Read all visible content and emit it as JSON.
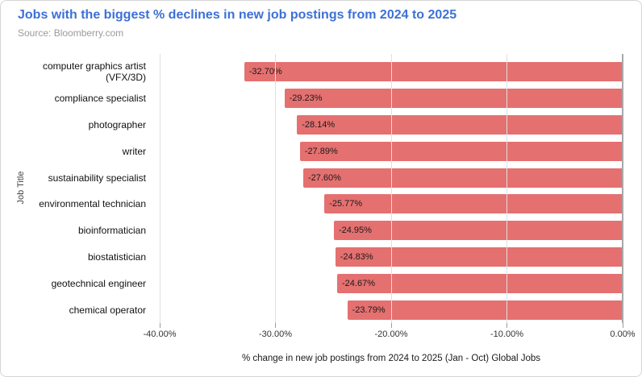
{
  "header": {
    "title": "Jobs with the biggest % declines in new job postings from 2024 to 2025",
    "source": "Source: Bloomberry.com"
  },
  "colors": {
    "title": "#3c70d6",
    "muted": "#9b9b9b",
    "bar": "#e57070",
    "grid": "#e0e0e0",
    "baseline": "#a8a8a8",
    "border": "#d6d6d6"
  },
  "chart_data": {
    "type": "bar",
    "orientation": "horizontal",
    "title": "Jobs with the biggest % declines in new job postings from 2024 to 2025",
    "subtitle": "Source: Bloomberry.com",
    "xlabel": "% change in new job postings from 2024 to 2025 (Jan - Oct) Global Jobs",
    "ylabel": "Job Title",
    "categories": [
      "computer graphics artist\n(VFX/3D)",
      "compliance specialist",
      "photographer",
      "writer",
      "sustainability specialist",
      "environmental technician",
      "bioinformatician",
      "biostatistician",
      "geotechnical engineer",
      "chemical operator"
    ],
    "values": [
      -32.7,
      -29.23,
      -28.14,
      -27.89,
      -27.6,
      -25.77,
      -24.95,
      -24.83,
      -24.67,
      -23.79
    ],
    "value_labels": [
      "-32.70%",
      "-29.23%",
      "-28.14%",
      "-27.89%",
      "-27.60%",
      "-25.77%",
      "-24.95%",
      "-24.83%",
      "-24.67%",
      "-23.79%"
    ],
    "xlim": [
      -40,
      0
    ],
    "xticks": [
      "-40.00%",
      "-30.00%",
      "-20.00%",
      "-10.00%",
      "0.00%"
    ],
    "grid": true,
    "legend": "none"
  }
}
